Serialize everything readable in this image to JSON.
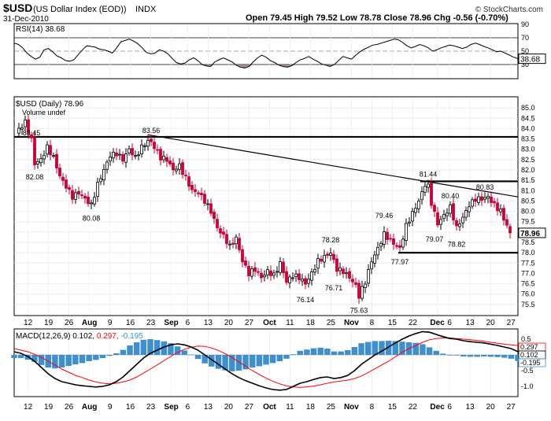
{
  "header": {
    "symbol": "$USD",
    "name": "(US Dollar Index (EOD))",
    "exchange": "INDX",
    "date": "31-Dec-2010",
    "ohlc": "Open 79.45  High 79.52  Low 78.78  Close 78.96  Chg -0.56 (-0.70%)",
    "watermark": "© StockCharts.com"
  },
  "colors": {
    "up": "#000000",
    "down": "#cc0033",
    "support": "#000000",
    "macd": "#000000",
    "signal": "#ff0000",
    "histogram": "#3d8fd0",
    "rsi_oversold_fill": "#8b6f6f"
  },
  "rsi_panel": {
    "legend": "RSI(14) 38.68",
    "last_label": "38.68",
    "y_range": [
      10,
      90
    ],
    "ticks": [
      {
        "v": 90,
        "label": "90"
      },
      {
        "v": 70,
        "label": "70"
      },
      {
        "v": 50,
        "label": "50"
      },
      {
        "v": 30,
        "label": "30"
      }
    ],
    "values": [
      62,
      60,
      55,
      47,
      42,
      38,
      41,
      52,
      54,
      49,
      43,
      40,
      36,
      35,
      37,
      45,
      52,
      58,
      57,
      56,
      53,
      52,
      50,
      47,
      55,
      64,
      66,
      68,
      65,
      61,
      55,
      48,
      46,
      47,
      52,
      50,
      46,
      39,
      33,
      31,
      32,
      37,
      40,
      36,
      30,
      28,
      27,
      34,
      37,
      40,
      37,
      34,
      29,
      26,
      25,
      27,
      34,
      40,
      44,
      41,
      36,
      33,
      29,
      27,
      26,
      28,
      33,
      37,
      39,
      42,
      38,
      35,
      31,
      29,
      27,
      30,
      36,
      42,
      40,
      38,
      44,
      49,
      53,
      56,
      59,
      60,
      62,
      64,
      66,
      68,
      67,
      63,
      58,
      55,
      57,
      60,
      58,
      55,
      50,
      52,
      55,
      57,
      59,
      58,
      56,
      54,
      56,
      60,
      62,
      60,
      57,
      55,
      52,
      49,
      50,
      47,
      44,
      41,
      38.68
    ]
  },
  "price_panel": {
    "legend": "$USD (Daily) 78.96",
    "volume_label": "Volume undef",
    "last_label": "78.96",
    "y_range": [
      75,
      85.5
    ],
    "ticks": [
      "85.0",
      "84.5",
      "84.0",
      "83.5",
      "83.0",
      "82.5",
      "82.0",
      "81.5",
      "81.0",
      "80.5",
      "80.0",
      "79.5",
      "79.0",
      "78.5",
      "78.0",
      "77.5",
      "77.0",
      "76.5",
      "76.0",
      "75.5"
    ],
    "annotations": [
      {
        "i": 5,
        "v": 83.45,
        "label": "83.45",
        "pos": "above"
      },
      {
        "i": 6,
        "v": 82.08,
        "label": "82.08",
        "pos": "below"
      },
      {
        "i": 24,
        "v": 80.08,
        "label": "80.08",
        "pos": "below"
      },
      {
        "i": 43,
        "v": 83.56,
        "label": "83.56",
        "pos": "above"
      },
      {
        "i": 92,
        "v": 76.14,
        "label": "76.14",
        "pos": "below"
      },
      {
        "i": 100,
        "v": 78.28,
        "label": "78.28",
        "pos": "above"
      },
      {
        "i": 101,
        "v": 76.71,
        "label": "76.71",
        "pos": "below"
      },
      {
        "i": 109,
        "v": 75.63,
        "label": "75.63",
        "pos": "below"
      },
      {
        "i": 117,
        "v": 79.46,
        "label": "79.46",
        "pos": "above"
      },
      {
        "i": 122,
        "v": 77.97,
        "label": "77.97",
        "pos": "below"
      },
      {
        "i": 131,
        "v": 81.44,
        "label": "81.44",
        "pos": "above"
      },
      {
        "i": 133,
        "v": 79.07,
        "label": "79.07",
        "pos": "below"
      },
      {
        "i": 138,
        "v": 80.4,
        "label": "80.40",
        "pos": "above"
      },
      {
        "i": 140,
        "v": 78.82,
        "label": "78.82",
        "pos": "below"
      },
      {
        "i": 149,
        "v": 80.83,
        "label": "80.83",
        "pos": "above"
      }
    ],
    "hlines": [
      {
        "v": 83.6,
        "from": 0,
        "to": 160
      },
      {
        "v": 81.45,
        "from": 129,
        "to": 160
      },
      {
        "v": 78.0,
        "from": 122,
        "to": 160
      }
    ],
    "trendline": {
      "from": [
        42,
        83.7
      ],
      "to": [
        160,
        80.7
      ]
    }
  },
  "macd_panel": {
    "legend_prefix": "MACD(12,26,9)",
    "legend_macd": "0.102,",
    "legend_signal": "0.297,",
    "legend_hist": "-0.195",
    "y_range": [
      -1.3,
      0.8
    ],
    "ticks": [
      {
        "v": 0.5,
        "label": "0.5"
      },
      {
        "v": -0.5,
        "label": "-0.5"
      },
      {
        "v": -1.0,
        "label": "-1.0"
      }
    ],
    "right_labels": [
      {
        "v": 0.297,
        "label": "0.297"
      },
      {
        "v": 0.102,
        "label": "0.102"
      },
      {
        "v": -0.195,
        "label": "-0.195"
      }
    ],
    "macd": [
      0.1,
      0.05,
      -0.05,
      -0.2,
      -0.4,
      -0.6,
      -0.75,
      -0.85,
      -0.9,
      -0.95,
      -0.98,
      -1.0,
      -1.02,
      -1.0,
      -0.95,
      -0.85,
      -0.7,
      -0.5,
      -0.3,
      -0.1,
      0.05,
      0.15,
      0.25,
      0.32,
      0.35,
      0.32,
      0.25,
      0.15,
      0.0,
      -0.15,
      -0.3,
      -0.45,
      -0.6,
      -0.72,
      -0.82,
      -0.9,
      -0.98,
      -1.05,
      -1.1,
      -1.12,
      -1.1,
      -1.0,
      -0.9,
      -0.85,
      -0.78,
      -0.72,
      -0.7,
      -0.75,
      -0.72,
      -0.65,
      -0.5,
      -0.3,
      -0.15,
      0.0,
      0.12,
      0.25,
      0.38,
      0.5,
      0.6,
      0.68,
      0.74,
      0.72,
      0.65,
      0.58,
      0.52,
      0.5,
      0.45,
      0.42,
      0.4,
      0.38,
      0.34,
      0.3,
      0.25,
      0.2,
      0.102
    ],
    "signal": [
      0.2,
      0.15,
      0.1,
      0.02,
      -0.08,
      -0.2,
      -0.32,
      -0.45,
      -0.55,
      -0.65,
      -0.72,
      -0.8,
      -0.86,
      -0.9,
      -0.92,
      -0.9,
      -0.86,
      -0.8,
      -0.7,
      -0.58,
      -0.45,
      -0.32,
      -0.18,
      -0.05,
      0.08,
      0.18,
      0.24,
      0.28,
      0.27,
      0.22,
      0.14,
      0.04,
      -0.08,
      -0.22,
      -0.36,
      -0.5,
      -0.62,
      -0.74,
      -0.84,
      -0.92,
      -0.98,
      -1.02,
      -1.03,
      -1.02,
      -0.99,
      -0.95,
      -0.9,
      -0.86,
      -0.83,
      -0.8,
      -0.75,
      -0.67,
      -0.56,
      -0.44,
      -0.32,
      -0.2,
      -0.06,
      0.08,
      0.2,
      0.3,
      0.4,
      0.48,
      0.52,
      0.54,
      0.54,
      0.52,
      0.5,
      0.48,
      0.46,
      0.43,
      0.4,
      0.37,
      0.34,
      0.32,
      0.297
    ]
  },
  "x_axis": {
    "labels": [
      {
        "i": 3,
        "label": "12",
        "bold": false
      },
      {
        "i": 8,
        "label": "19",
        "bold": false
      },
      {
        "i": 13,
        "label": "26",
        "bold": false
      },
      {
        "i": 18,
        "label": "Aug",
        "bold": true
      },
      {
        "i": 23,
        "label": "9",
        "bold": false
      },
      {
        "i": 28,
        "label": "16",
        "bold": false
      },
      {
        "i": 33,
        "label": "23",
        "bold": false
      },
      {
        "i": 38,
        "label": "Sep",
        "bold": true
      },
      {
        "i": 42,
        "label": "6",
        "bold": false
      },
      {
        "i": 47,
        "label": "13",
        "bold": false
      },
      {
        "i": 52,
        "label": "20",
        "bold": false
      },
      {
        "i": 57,
        "label": "27",
        "bold": false
      },
      {
        "i": 62,
        "label": "Oct",
        "bold": true
      },
      {
        "i": 67,
        "label": "11",
        "bold": false
      },
      {
        "i": 72,
        "label": "18",
        "bold": false
      },
      {
        "i": 77,
        "label": "25",
        "bold": false
      },
      {
        "i": 82,
        "label": "Nov",
        "bold": true
      },
      {
        "i": 87,
        "label": "8",
        "bold": false
      },
      {
        "i": 92,
        "label": "15",
        "bold": false
      },
      {
        "i": 97,
        "label": "22",
        "bold": false
      },
      {
        "i": 103,
        "label": "Dec",
        "bold": true
      },
      {
        "i": 106,
        "label": "6",
        "bold": false
      },
      {
        "i": 111,
        "label": "13",
        "bold": false
      },
      {
        "i": 116,
        "label": "20",
        "bold": false
      },
      {
        "i": 121,
        "label": "27",
        "bold": false
      }
    ]
  },
  "chart_data": {
    "type": "candlestick",
    "anchors": [
      [
        0,
        83.8
      ],
      [
        3,
        84.3
      ],
      [
        5,
        83.45
      ],
      [
        6,
        82.3
      ],
      [
        8,
        82.5
      ],
      [
        10,
        83.1
      ],
      [
        12,
        82.6
      ],
      [
        14,
        81.7
      ],
      [
        16,
        81.2
      ],
      [
        18,
        80.7
      ],
      [
        20,
        80.9
      ],
      [
        22,
        80.6
      ],
      [
        24,
        80.3
      ],
      [
        26,
        81.3
      ],
      [
        28,
        82.0
      ],
      [
        30,
        82.7
      ],
      [
        32,
        82.8
      ],
      [
        34,
        82.5
      ],
      [
        36,
        83.0
      ],
      [
        38,
        82.6
      ],
      [
        40,
        83.1
      ],
      [
        42,
        83.4
      ],
      [
        43,
        83.35
      ],
      [
        44,
        83.1
      ],
      [
        46,
        82.6
      ],
      [
        48,
        82.5
      ],
      [
        50,
        82.0
      ],
      [
        52,
        82.2
      ],
      [
        54,
        81.6
      ],
      [
        56,
        81.0
      ],
      [
        58,
        80.9
      ],
      [
        60,
        80.5
      ],
      [
        62,
        80.0
      ],
      [
        64,
        79.2
      ],
      [
        66,
        78.8
      ],
      [
        68,
        78.3
      ],
      [
        70,
        78.7
      ],
      [
        72,
        77.6
      ],
      [
        74,
        77.0
      ],
      [
        76,
        77.2
      ],
      [
        78,
        76.8
      ],
      [
        80,
        77.1
      ],
      [
        82,
        76.9
      ],
      [
        84,
        77.5
      ],
      [
        86,
        76.6
      ],
      [
        88,
        76.9
      ],
      [
        90,
        76.8
      ],
      [
        92,
        76.5
      ],
      [
        94,
        77.0
      ],
      [
        96,
        77.6
      ],
      [
        98,
        77.8
      ],
      [
        100,
        78.0
      ],
      [
        102,
        77.2
      ],
      [
        104,
        77.1
      ],
      [
        106,
        76.8
      ],
      [
        108,
        76.4
      ],
      [
        109,
        75.9
      ],
      [
        111,
        76.6
      ],
      [
        113,
        77.6
      ],
      [
        115,
        78.2
      ],
      [
        117,
        78.9
      ],
      [
        119,
        78.6
      ],
      [
        121,
        78.3
      ],
      [
        122,
        78.2
      ],
      [
        124,
        79.3
      ],
      [
        126,
        79.9
      ],
      [
        128,
        80.5
      ],
      [
        130,
        81.3
      ],
      [
        131,
        81.2
      ],
      [
        132,
        80.4
      ],
      [
        134,
        79.4
      ],
      [
        136,
        79.8
      ],
      [
        138,
        80.2
      ],
      [
        140,
        79.2
      ],
      [
        142,
        79.7
      ],
      [
        144,
        80.3
      ],
      [
        146,
        80.6
      ],
      [
        148,
        80.6
      ],
      [
        150,
        80.7
      ],
      [
        152,
        80.3
      ],
      [
        154,
        80.0
      ],
      [
        156,
        79.3
      ],
      [
        157,
        78.96
      ]
    ],
    "yrange": [
      75,
      85.5
    ],
    "ylabel": ""
  }
}
